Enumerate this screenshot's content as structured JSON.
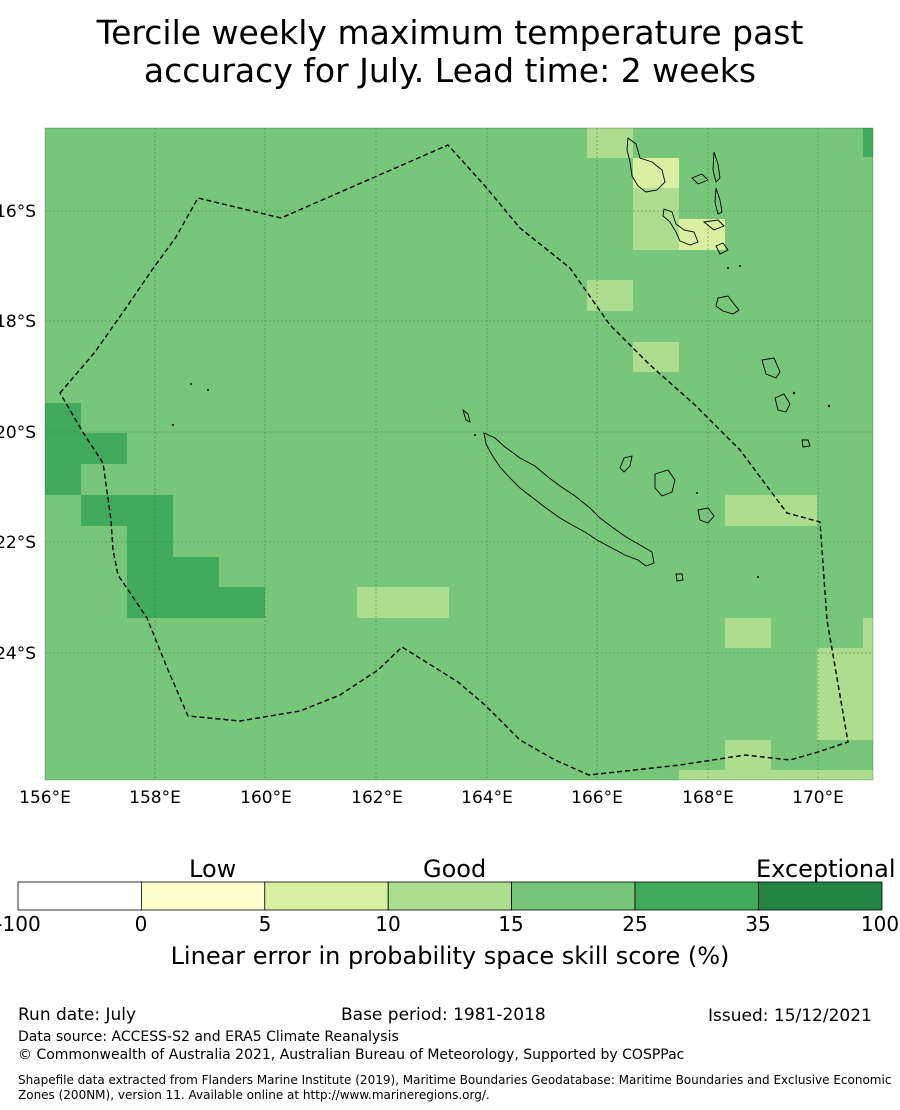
{
  "title_line1": "Tercile weekly maximum temperature past",
  "title_line2": "accuracy for July. Lead time: 2 weeks",
  "map": {
    "lon_labels": [
      "156°E",
      "158°E",
      "160°E",
      "162°E",
      "164°E",
      "166°E",
      "168°E",
      "170°E"
    ],
    "lat_labels": [
      "16°S",
      "18°S",
      "20°S",
      "22°S",
      "24°S"
    ],
    "base_color": "#78c679",
    "boundary_style": "dashed black",
    "gridlines": true
  },
  "colorbar": {
    "categories": [
      "Low",
      "Good",
      "Exceptional"
    ],
    "ticks": [
      "-100",
      "0",
      "5",
      "10",
      "15",
      "25",
      "35",
      "100"
    ],
    "colors": [
      "#ffffff",
      "#ffffcc",
      "#d9f0a3",
      "#addd8e",
      "#78c679",
      "#41ab5d",
      "#238443"
    ],
    "title": "Linear error in probability space skill score (%)"
  },
  "footer": {
    "run_date": "Run date: July",
    "base_period": "Base period: 1981-2018",
    "issued": "Issued: 15/12/2021",
    "data_source": "Data source: ACCESS-S2 and ERA5 Climate Reanalysis",
    "copyright": "© Commonwealth of Australia 2021, Australian Bureau of Meteorology, Supported by COSPPac",
    "shapefile_line1": "Shapefile data extracted from Flanders Marine Institute (2019), Maritime Boundaries Geodatabase: Maritime Boundaries and Exclusive Economic",
    "shapefile_line2": "Zones (200NM), version 11. Available online at http://www.marineregions.org/."
  }
}
